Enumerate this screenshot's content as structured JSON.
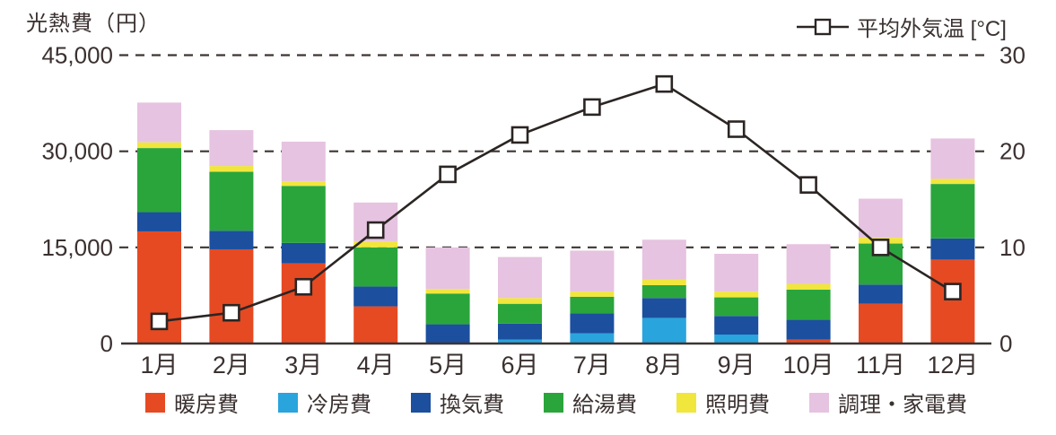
{
  "title": "光熱費（円）",
  "line_legend": {
    "label": "平均外気温 [°C]"
  },
  "chart_data": {
    "type": "stacked-bar+line",
    "categories": [
      "1月",
      "2月",
      "3月",
      "4月",
      "5月",
      "6月",
      "7月",
      "8月",
      "9月",
      "10月",
      "11月",
      "12月"
    ],
    "series": [
      {
        "key": "heating",
        "name": "暖房費",
        "color": "#e64a23",
        "values": [
          17500,
          14700,
          12500,
          5800,
          0,
          0,
          0,
          0,
          0,
          600,
          6200,
          13100
        ]
      },
      {
        "key": "cooling",
        "name": "冷房費",
        "color": "#29a4dc",
        "values": [
          0,
          0,
          0,
          0,
          0,
          600,
          1600,
          4000,
          1400,
          0,
          0,
          0
        ]
      },
      {
        "key": "ventilation",
        "name": "換気費",
        "color": "#1c4f9e",
        "values": [
          3000,
          2900,
          3200,
          3100,
          3000,
          2500,
          3100,
          3100,
          2900,
          3100,
          3000,
          3300
        ]
      },
      {
        "key": "hot_water",
        "name": "給湯費",
        "color": "#2aa53c",
        "values": [
          10000,
          9200,
          8900,
          6100,
          4800,
          3100,
          2600,
          2000,
          2900,
          4700,
          6400,
          8500
        ]
      },
      {
        "key": "lighting",
        "name": "照明費",
        "color": "#f0e63c",
        "values": [
          900,
          900,
          700,
          900,
          700,
          900,
          800,
          900,
          900,
          900,
          900,
          800
        ]
      },
      {
        "key": "appliances",
        "name": "調理・家電費",
        "color": "#e6c3e0",
        "values": [
          6200,
          5600,
          6200,
          6100,
          6500,
          6400,
          6400,
          6200,
          5900,
          6200,
          6100,
          6300
        ]
      }
    ],
    "line": {
      "name": "平均外気温",
      "unit": "°C",
      "color": "#2b2523",
      "marker": "open-square",
      "values": [
        2.3,
        3.2,
        5.9,
        11.8,
        17.6,
        21.7,
        24.6,
        27.0,
        22.3,
        16.5,
        10.0,
        5.4
      ]
    },
    "left_axis": {
      "label": "光熱費（円）",
      "max": 45000,
      "ticks": [
        {
          "value": 0,
          "label": "0"
        },
        {
          "value": 15000,
          "label": "15,000"
        },
        {
          "value": 30000,
          "label": "30,000"
        },
        {
          "value": 45000,
          "label": "45,000"
        }
      ]
    },
    "right_axis": {
      "label": "平均外気温 [°C]",
      "max": 30,
      "ticks": [
        {
          "value": 0,
          "label": "0"
        },
        {
          "value": 10,
          "label": "10"
        },
        {
          "value": 20,
          "label": "20"
        },
        {
          "value": 30,
          "label": "30"
        }
      ]
    },
    "grid": "dashed horizontal",
    "legend_position": "bottom"
  },
  "colors": {
    "axis_text": "#3a3130",
    "grid_line": "#3d3533",
    "temp_line": "#2b2523",
    "marker_fill": "#ffffff"
  }
}
